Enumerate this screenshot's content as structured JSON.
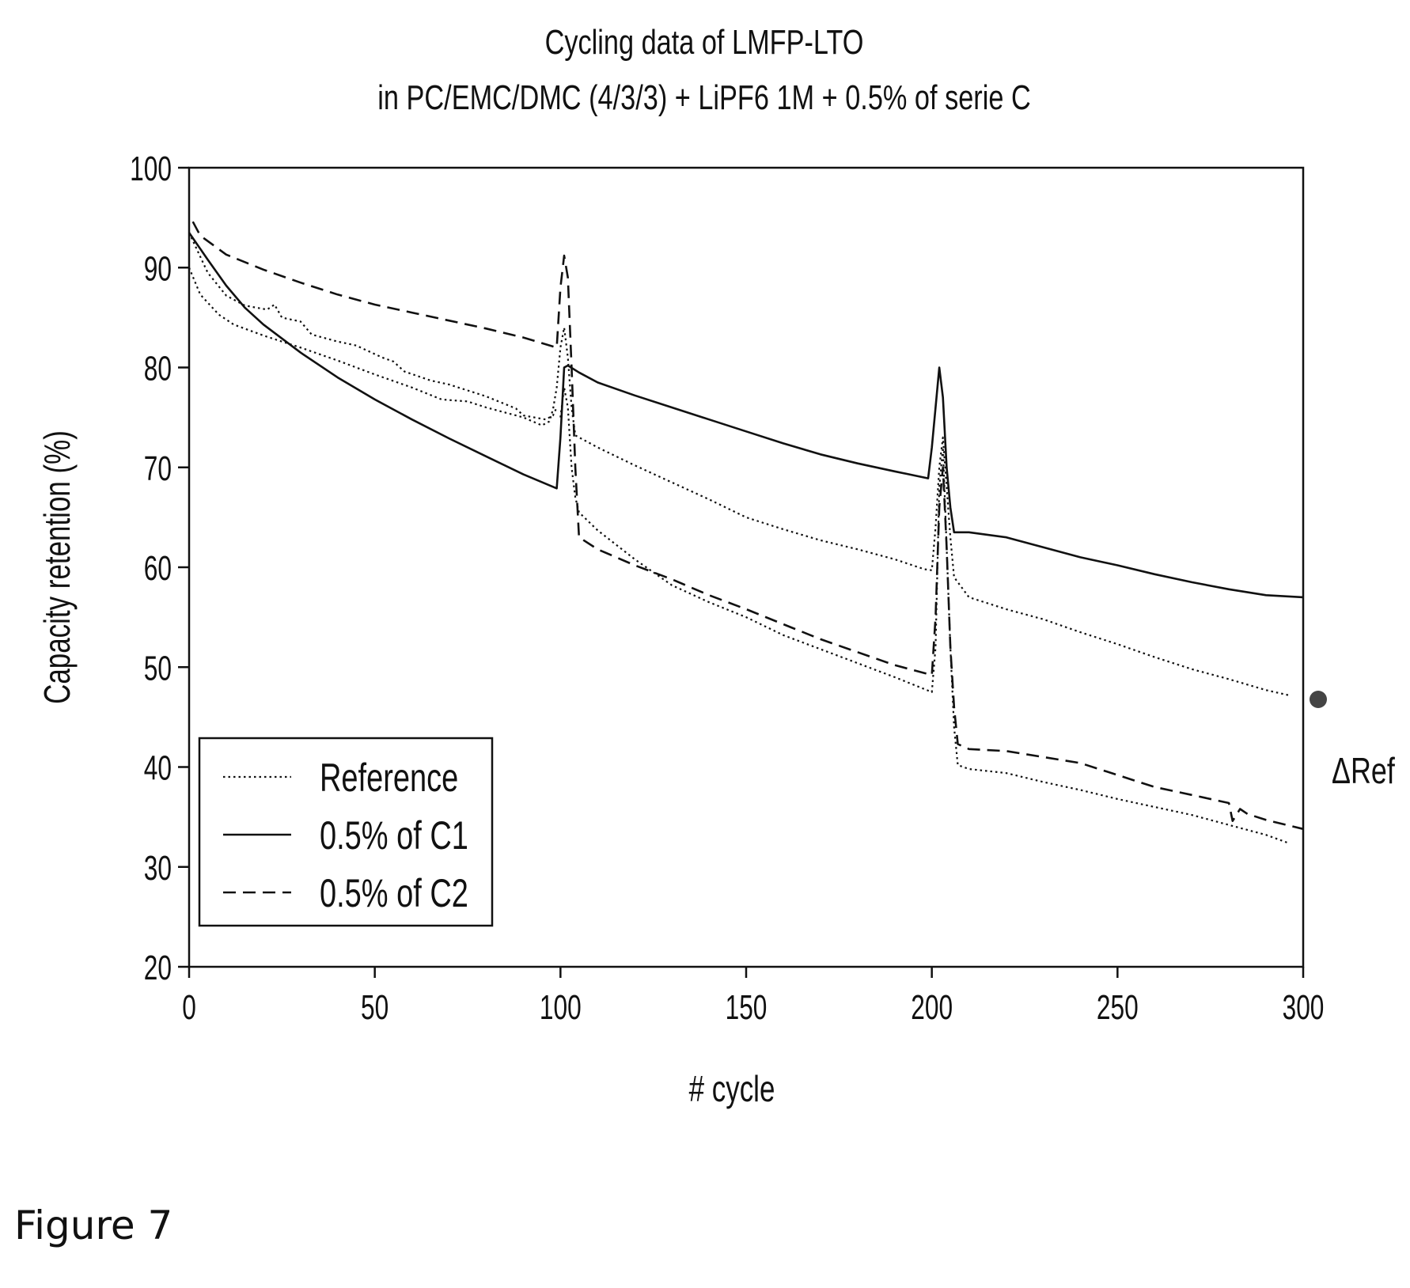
{
  "figure_caption": "Figure 7",
  "side_marker_label": "ΔRef",
  "chart_data": {
    "type": "line",
    "title": [
      "Cycling data of LMFP-LTO",
      "in PC/EMC/DMC (4/3/3) + LiPF6 1M + 0.5% of serie C"
    ],
    "xlabel": "# cycle",
    "ylabel": "Capacity retention (%)",
    "xlim": [
      0,
      300
    ],
    "ylim": [
      20,
      100
    ],
    "xticks": [
      0,
      50,
      100,
      150,
      200,
      250,
      300
    ],
    "yticks": [
      20,
      30,
      40,
      50,
      60,
      70,
      80,
      90,
      100
    ],
    "grid": false,
    "legend_position": "bottom-left",
    "series": [
      {
        "name": "Reference",
        "style": "dotted",
        "points": [
          [
            0,
            93.5
          ],
          [
            5,
            89.5
          ],
          [
            10,
            87.2
          ],
          [
            15,
            86.2
          ],
          [
            21,
            85.8
          ],
          [
            23,
            86.3
          ],
          [
            25,
            85.0
          ],
          [
            30,
            84.6
          ],
          [
            33,
            83.3
          ],
          [
            40,
            82.6
          ],
          [
            45,
            82.2
          ],
          [
            52,
            81.0
          ],
          [
            55,
            80.6
          ],
          [
            58,
            79.6
          ],
          [
            65,
            78.7
          ],
          [
            70,
            78.3
          ],
          [
            75,
            77.7
          ],
          [
            80,
            77.1
          ],
          [
            88,
            75.9
          ],
          [
            90,
            75.2
          ],
          [
            96,
            74.8
          ],
          [
            98,
            75.2
          ],
          [
            99,
            76.0
          ]
        ]
      },
      {
        "name": "",
        "style": "dotted",
        "points": [
          [
            0,
            90.0
          ],
          [
            3,
            87.3
          ],
          [
            8,
            85.3
          ],
          [
            12,
            84.3
          ],
          [
            20,
            83.2
          ],
          [
            30,
            82.0
          ],
          [
            40,
            80.7
          ],
          [
            50,
            79.3
          ],
          [
            60,
            78.0
          ],
          [
            68,
            76.8
          ],
          [
            75,
            76.6
          ],
          [
            80,
            76.0
          ],
          [
            90,
            75.0
          ],
          [
            95,
            74.2
          ],
          [
            97,
            74.6
          ],
          [
            98,
            75.8
          ],
          [
            99,
            78.0
          ],
          [
            100,
            82.0
          ],
          [
            101,
            84.0
          ],
          [
            102,
            81.0
          ],
          [
            103,
            76.0
          ],
          [
            104,
            73.2
          ],
          [
            110,
            72.0
          ],
          [
            120,
            70.2
          ],
          [
            130,
            68.5
          ],
          [
            140,
            66.8
          ],
          [
            150,
            65.0
          ],
          [
            160,
            63.8
          ],
          [
            170,
            62.7
          ],
          [
            180,
            61.8
          ],
          [
            190,
            60.8
          ],
          [
            198,
            59.8
          ],
          [
            200,
            59.7
          ],
          [
            201,
            64.0
          ],
          [
            202,
            70.0
          ],
          [
            203,
            73.0
          ],
          [
            204,
            68.0
          ],
          [
            205,
            63.0
          ],
          [
            206,
            59.0
          ],
          [
            210,
            57.0
          ],
          [
            220,
            55.8
          ],
          [
            230,
            54.8
          ],
          [
            240,
            53.5
          ],
          [
            250,
            52.3
          ],
          [
            260,
            51.0
          ],
          [
            270,
            49.8
          ],
          [
            280,
            48.8
          ],
          [
            290,
            47.7
          ],
          [
            296,
            47.2
          ]
        ]
      },
      {
        "name": "",
        "style": "dotted",
        "points": [
          [
            100,
            75.0
          ],
          [
            101,
            78.0
          ],
          [
            102,
            76.0
          ],
          [
            103,
            70.0
          ],
          [
            104,
            67.0
          ],
          [
            105,
            65.5
          ],
          [
            110,
            63.7
          ],
          [
            120,
            60.8
          ],
          [
            130,
            58.2
          ],
          [
            140,
            56.5
          ],
          [
            150,
            55.0
          ],
          [
            160,
            53.2
          ],
          [
            170,
            51.8
          ],
          [
            180,
            50.4
          ],
          [
            190,
            49.0
          ],
          [
            198,
            47.8
          ],
          [
            200,
            47.5
          ],
          [
            201,
            52.0
          ],
          [
            202,
            68.0
          ],
          [
            203,
            72.0
          ],
          [
            204,
            62.0
          ],
          [
            205,
            52.0
          ],
          [
            206,
            44.0
          ],
          [
            207,
            40.2
          ],
          [
            210,
            39.8
          ],
          [
            220,
            39.4
          ],
          [
            230,
            38.5
          ],
          [
            240,
            37.7
          ],
          [
            250,
            36.8
          ],
          [
            260,
            36.0
          ],
          [
            270,
            35.2
          ],
          [
            280,
            34.2
          ],
          [
            290,
            33.2
          ],
          [
            296,
            32.4
          ]
        ]
      },
      {
        "name": "0.5% of C1",
        "style": "solid",
        "points": [
          [
            0,
            93.5
          ],
          [
            5,
            90.8
          ],
          [
            10,
            88.2
          ],
          [
            15,
            86.0
          ],
          [
            20,
            84.3
          ],
          [
            30,
            81.5
          ],
          [
            40,
            79.0
          ],
          [
            50,
            76.8
          ],
          [
            60,
            74.8
          ],
          [
            70,
            72.9
          ],
          [
            80,
            71.1
          ],
          [
            90,
            69.3
          ],
          [
            99,
            67.9
          ],
          [
            100,
            73.0
          ],
          [
            101,
            80.0
          ],
          [
            102,
            80.2
          ],
          [
            105,
            79.5
          ],
          [
            110,
            78.5
          ],
          [
            120,
            77.2
          ],
          [
            130,
            76.0
          ],
          [
            140,
            74.8
          ],
          [
            150,
            73.6
          ],
          [
            160,
            72.4
          ],
          [
            170,
            71.3
          ],
          [
            180,
            70.4
          ],
          [
            190,
            69.6
          ],
          [
            199,
            68.9
          ],
          [
            200,
            72.0
          ],
          [
            201,
            76.0
          ],
          [
            202,
            80.0
          ],
          [
            203,
            77.0
          ],
          [
            204,
            70.0
          ],
          [
            205,
            66.0
          ],
          [
            206,
            63.5
          ],
          [
            210,
            63.5
          ],
          [
            220,
            63.0
          ],
          [
            230,
            62.0
          ],
          [
            240,
            61.0
          ],
          [
            250,
            60.2
          ],
          [
            260,
            59.3
          ],
          [
            270,
            58.5
          ],
          [
            280,
            57.8
          ],
          [
            290,
            57.2
          ],
          [
            300,
            57.0
          ]
        ]
      },
      {
        "name": "0.5% of C2",
        "style": "dashed",
        "points": [
          [
            1,
            94.6
          ],
          [
            3,
            93.2
          ],
          [
            10,
            91.3
          ],
          [
            20,
            89.8
          ],
          [
            30,
            88.5
          ],
          [
            40,
            87.3
          ],
          [
            50,
            86.3
          ],
          [
            60,
            85.5
          ],
          [
            70,
            84.7
          ],
          [
            80,
            83.9
          ],
          [
            90,
            83.0
          ],
          [
            99,
            82.0
          ],
          [
            100,
            88.0
          ],
          [
            101,
            91.2
          ],
          [
            102,
            89.0
          ],
          [
            103,
            80.0
          ],
          [
            104,
            70.0
          ],
          [
            105,
            63.0
          ],
          [
            110,
            61.8
          ],
          [
            120,
            60.2
          ],
          [
            130,
            58.8
          ],
          [
            140,
            57.2
          ],
          [
            150,
            55.8
          ],
          [
            160,
            54.3
          ],
          [
            170,
            52.8
          ],
          [
            180,
            51.5
          ],
          [
            190,
            50.2
          ],
          [
            200,
            49.2
          ],
          [
            201,
            55.0
          ],
          [
            202,
            66.0
          ],
          [
            203,
            70.0
          ],
          [
            204,
            62.0
          ],
          [
            205,
            52.0
          ],
          [
            206,
            46.0
          ],
          [
            207,
            42.3
          ],
          [
            210,
            41.8
          ],
          [
            220,
            41.6
          ],
          [
            230,
            41.0
          ],
          [
            240,
            40.4
          ],
          [
            250,
            39.2
          ],
          [
            260,
            38.0
          ],
          [
            270,
            37.2
          ],
          [
            280,
            36.4
          ],
          [
            281,
            34.6
          ],
          [
            283,
            35.8
          ],
          [
            285,
            35.3
          ],
          [
            290,
            34.7
          ],
          [
            300,
            33.8
          ]
        ]
      }
    ]
  }
}
